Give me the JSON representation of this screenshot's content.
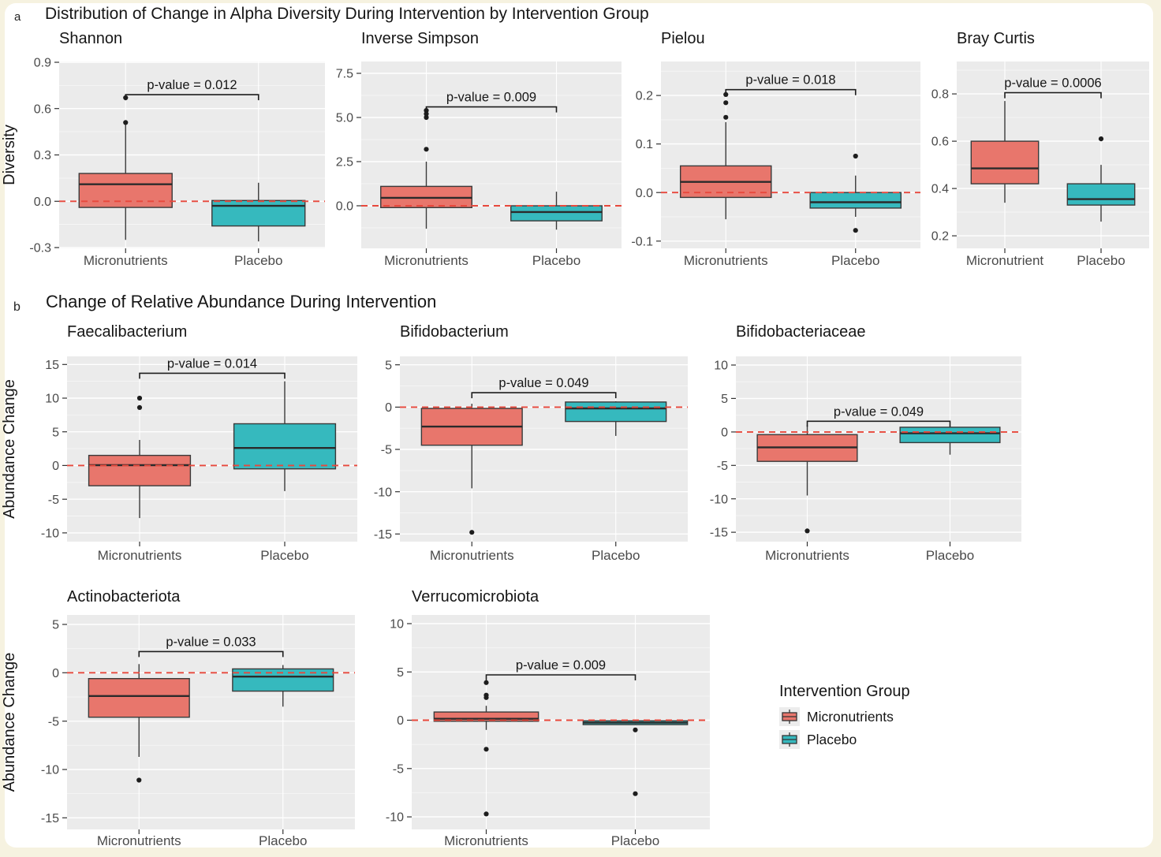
{
  "colors": {
    "micronutrients": "#e8766c",
    "placebo": "#36b9be",
    "zero_line": "#e8483c",
    "panel_bg": "#ebebeb",
    "grid": "#ffffff",
    "box_stroke": "#3a3a3a"
  },
  "sections": {
    "a": {
      "label": "a",
      "title": "Distribution of Change in Alpha Diversity During Intervention by Intervention Group"
    },
    "b": {
      "label": "b",
      "title": "Change of Relative Abundance During Intervention"
    }
  },
  "legend": {
    "title": "Intervention Group",
    "items": [
      {
        "label": "Micronutrients",
        "color_key": "micronutrients"
      },
      {
        "label": "Placebo",
        "color_key": "placebo"
      }
    ]
  },
  "chart_data": [
    {
      "type": "boxplot",
      "section": "a",
      "title": "Shannon",
      "ylabel": "Diversity",
      "ylim": [
        -0.305,
        0.905
      ],
      "yticks": [
        0.9,
        0.6,
        0.3,
        0.0,
        -0.3
      ],
      "ytick_labels": [
        "0.9",
        "0.6",
        "0.3",
        "0.0",
        "-0.3"
      ],
      "xtick_labels": [
        "Micronutrients",
        "Placebo"
      ],
      "zero_line": 0,
      "p_value_label": "p-value = 0.012",
      "bracket_y": 0.69,
      "series": [
        {
          "name": "Micronutrients",
          "color_key": "micronutrients",
          "whisker_low": -0.25,
          "q1": -0.04,
          "median": 0.11,
          "q3": 0.18,
          "whisker_high": 0.5,
          "outliers": [
            0.51,
            0.67
          ]
        },
        {
          "name": "Placebo",
          "color_key": "placebo",
          "whisker_low": -0.26,
          "q1": -0.16,
          "median": -0.03,
          "q3": 0.005,
          "whisker_high": 0.12,
          "outliers": []
        }
      ]
    },
    {
      "type": "boxplot",
      "section": "a",
      "title": "Inverse Simpson",
      "ylabel": null,
      "ylim": [
        -2.41,
        8.17
      ],
      "yticks": [
        7.5,
        5.0,
        2.5,
        0.0
      ],
      "ytick_labels": [
        "7.5",
        "5.0",
        "2.5",
        "0.0"
      ],
      "xtick_labels": [
        "Micronutrients",
        "Placebo"
      ],
      "zero_line": 0,
      "p_value_label": "p-value = 0.009",
      "bracket_y": 5.6,
      "series": [
        {
          "name": "Micronutrients",
          "color_key": "micronutrients",
          "whisker_low": -1.3,
          "q1": -0.1,
          "median": 0.45,
          "q3": 1.1,
          "whisker_high": 2.5,
          "outliers": [
            3.2,
            5.0,
            5.2,
            5.4
          ]
        },
        {
          "name": "Placebo",
          "color_key": "placebo",
          "whisker_low": -1.35,
          "q1": -0.85,
          "median": -0.35,
          "q3": 0.0,
          "whisker_high": 0.8,
          "outliers": []
        }
      ]
    },
    {
      "type": "boxplot",
      "section": "a",
      "title": "Pielou",
      "ylabel": null,
      "ylim": [
        -0.115,
        0.27
      ],
      "yticks": [
        0.2,
        0.1,
        0.0,
        -0.1
      ],
      "ytick_labels": [
        "0.2",
        "0.1",
        "0.0",
        "-0.1"
      ],
      "xtick_labels": [
        "Micronutrients",
        "Placebo"
      ],
      "zero_line": 0,
      "p_value_label": "p-value = 0.018",
      "bracket_y": 0.212,
      "series": [
        {
          "name": "Micronutrients",
          "color_key": "micronutrients",
          "whisker_low": -0.055,
          "q1": -0.01,
          "median": 0.022,
          "q3": 0.055,
          "whisker_high": 0.145,
          "outliers": [
            0.155,
            0.185,
            0.202
          ]
        },
        {
          "name": "Placebo",
          "color_key": "placebo",
          "whisker_low": -0.05,
          "q1": -0.032,
          "median": -0.02,
          "q3": 0.0,
          "whisker_high": 0.035,
          "outliers": [
            0.075,
            -0.078
          ]
        }
      ]
    },
    {
      "type": "boxplot",
      "section": "a",
      "title": "Bray Curtis",
      "ylabel": null,
      "ylim": [
        0.147,
        0.937
      ],
      "yticks": [
        0.8,
        0.6,
        0.4,
        0.2
      ],
      "ytick_labels": [
        "0.8",
        "0.6",
        "0.4",
        "0.2"
      ],
      "xtick_labels": [
        "Micronutrient",
        "Placebo"
      ],
      "zero_line": 0,
      "p_value_label": "p-value = 0.0006",
      "bracket_y": 0.805,
      "series": [
        {
          "name": "Micronutrients",
          "color_key": "micronutrients",
          "whisker_low": 0.34,
          "q1": 0.42,
          "median": 0.485,
          "q3": 0.6,
          "whisker_high": 0.77,
          "outliers": []
        },
        {
          "name": "Placebo",
          "color_key": "placebo",
          "whisker_low": 0.26,
          "q1": 0.33,
          "median": 0.355,
          "q3": 0.42,
          "whisker_high": 0.5,
          "outliers": [
            0.61
          ]
        }
      ]
    },
    {
      "type": "boxplot",
      "section": "b",
      "title": "Faecalibacterium",
      "ylabel": "Abundance Change",
      "ylim": [
        -11.3,
        16.2
      ],
      "yticks": [
        15,
        10,
        5,
        0,
        -5,
        -10
      ],
      "ytick_labels": [
        "15",
        "10",
        "5",
        "0",
        "-5",
        "-10"
      ],
      "xtick_labels": [
        "Micronutrients",
        "Placebo"
      ],
      "zero_line": 0,
      "p_value_label": "p-value = 0.014",
      "bracket_y": 13.7,
      "series": [
        {
          "name": "Micronutrients",
          "color_key": "micronutrients",
          "whisker_low": -7.8,
          "q1": -3.0,
          "median": 0.05,
          "q3": 1.5,
          "whisker_high": 3.8,
          "outliers": [
            8.6,
            10.0
          ]
        },
        {
          "name": "Placebo",
          "color_key": "placebo",
          "whisker_low": -3.8,
          "q1": -0.5,
          "median": 2.6,
          "q3": 6.2,
          "whisker_high": 12.5,
          "outliers": []
        }
      ]
    },
    {
      "type": "boxplot",
      "section": "b",
      "title": "Bifidobacterium",
      "ylabel": null,
      "ylim": [
        -15.9,
        6.0
      ],
      "yticks": [
        5,
        0,
        -5,
        -10,
        -15
      ],
      "ytick_labels": [
        "5",
        "0",
        "-5",
        "-10",
        "-15"
      ],
      "xtick_labels": [
        "Micronutrients",
        "Placebo"
      ],
      "zero_line": 0,
      "p_value_label": "p-value = 0.049",
      "bracket_y": 1.7,
      "series": [
        {
          "name": "Micronutrients",
          "color_key": "micronutrients",
          "whisker_low": -9.6,
          "q1": -4.5,
          "median": -2.3,
          "q3": -0.15,
          "whisker_high": 0.4,
          "outliers": [
            -14.8
          ]
        },
        {
          "name": "Placebo",
          "color_key": "placebo",
          "whisker_low": -3.4,
          "q1": -1.7,
          "median": -0.15,
          "q3": 0.6,
          "whisker_high": 0.7,
          "outliers": []
        }
      ]
    },
    {
      "type": "boxplot",
      "section": "b",
      "title": "Bifidobacteriaceae",
      "ylabel": null,
      "ylim": [
        -16.4,
        11.3
      ],
      "yticks": [
        10,
        5,
        0,
        -5,
        -10,
        -15
      ],
      "ytick_labels": [
        "10",
        "5",
        "0",
        "-5",
        "-10",
        "-15"
      ],
      "xtick_labels": [
        "Micronutrients",
        "Placebo"
      ],
      "zero_line": 0,
      "p_value_label": "p-value = 0.049",
      "bracket_y": 1.6,
      "series": [
        {
          "name": "Micronutrients",
          "color_key": "micronutrients",
          "whisker_low": -9.5,
          "q1": -4.4,
          "median": -2.3,
          "q3": -0.4,
          "whisker_high": 1.0,
          "outliers": [
            -14.8
          ]
        },
        {
          "name": "Placebo",
          "color_key": "placebo",
          "whisker_low": -3.4,
          "q1": -1.6,
          "median": -0.2,
          "q3": 0.7,
          "whisker_high": 0.85,
          "outliers": []
        }
      ]
    },
    {
      "type": "boxplot",
      "section": "b",
      "title": "Actinobacteriota",
      "ylabel": "Abundance Change",
      "ylim": [
        -16.2,
        5.98
      ],
      "yticks": [
        5,
        0,
        -5,
        -10,
        -15
      ],
      "ytick_labels": [
        "5",
        "0",
        "-5",
        "-10",
        "-15"
      ],
      "xtick_labels": [
        "Micronutrients",
        "Placebo"
      ],
      "zero_line": 0,
      "p_value_label": "p-value = 0.033",
      "bracket_y": 2.2,
      "series": [
        {
          "name": "Micronutrients",
          "color_key": "micronutrients",
          "whisker_low": -8.7,
          "q1": -4.6,
          "median": -2.4,
          "q3": -0.6,
          "whisker_high": 0.9,
          "outliers": [
            -11.1
          ]
        },
        {
          "name": "Placebo",
          "color_key": "placebo",
          "whisker_low": -3.5,
          "q1": -1.9,
          "median": -0.4,
          "q3": 0.4,
          "whisker_high": 0.8,
          "outliers": []
        }
      ]
    },
    {
      "type": "boxplot",
      "section": "b",
      "title": "Verrucomicrobiota",
      "ylabel": null,
      "ylim": [
        -11.3,
        10.9
      ],
      "yticks": [
        10,
        5,
        0,
        -5,
        -10
      ],
      "ytick_labels": [
        "10",
        "5",
        "0",
        "-5",
        "-10"
      ],
      "xtick_labels": [
        "Micronutrients",
        "Placebo"
      ],
      "zero_line": 0,
      "p_value_label": "p-value = 0.009",
      "bracket_y": 4.7,
      "series": [
        {
          "name": "Micronutrients",
          "color_key": "micronutrients",
          "whisker_low": -1.0,
          "q1": -0.1,
          "median": 0.15,
          "q3": 0.85,
          "whisker_high": 1.5,
          "outliers": [
            3.9,
            2.6,
            2.35,
            -3.0,
            -9.7
          ]
        },
        {
          "name": "Placebo",
          "color_key": "placebo",
          "whisker_low": -0.5,
          "q1": -0.45,
          "median": -0.25,
          "q3": -0.05,
          "whisker_high": -0.02,
          "outliers": [
            -1.0,
            -7.6
          ]
        }
      ]
    }
  ]
}
